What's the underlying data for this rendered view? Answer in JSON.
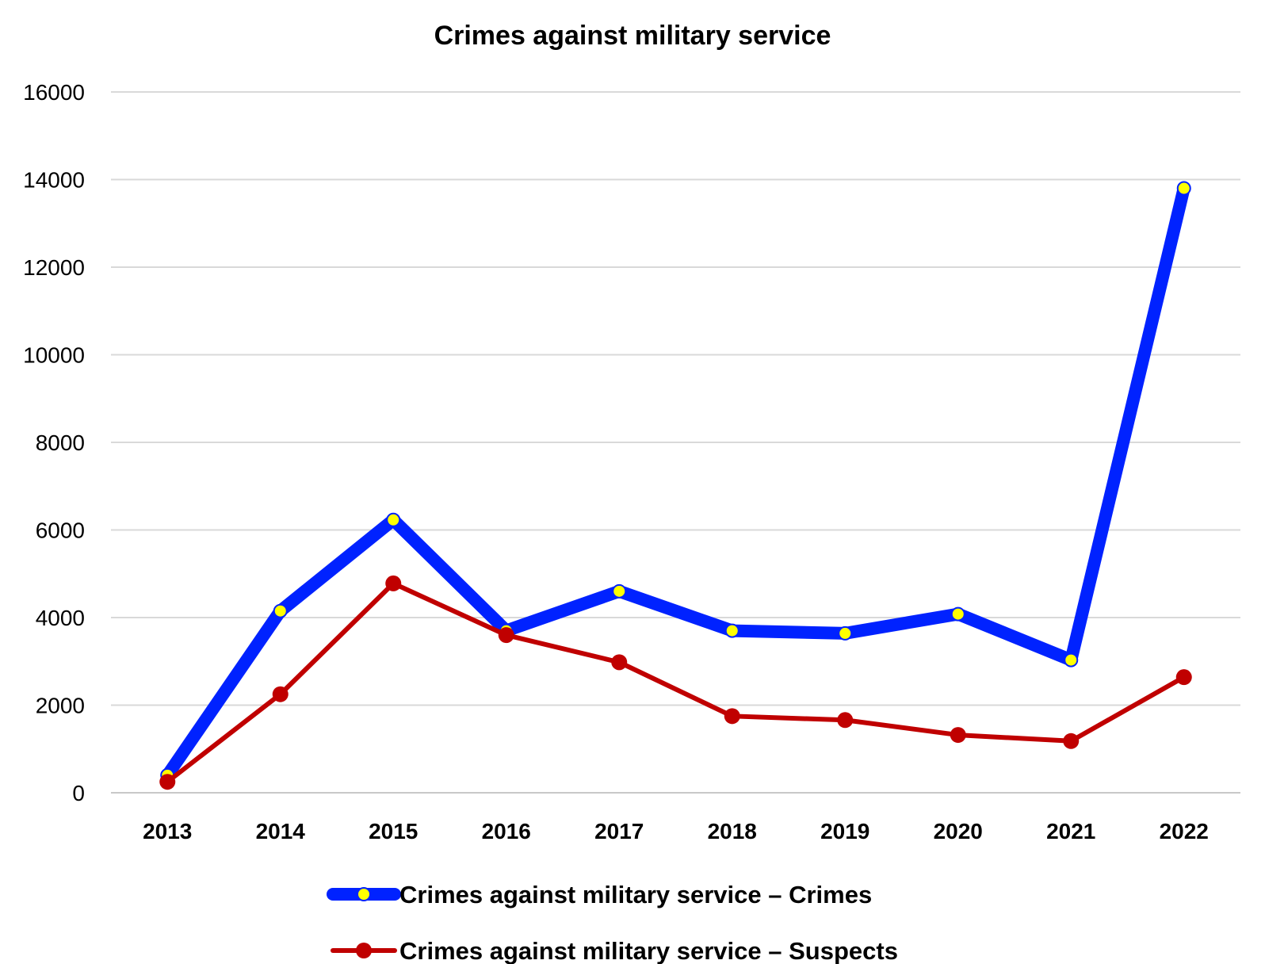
{
  "chart_data": {
    "type": "line",
    "title": "Crimes against military service",
    "xlabel": "",
    "ylabel": "",
    "categories": [
      "2013",
      "2014",
      "2015",
      "2016",
      "2017",
      "2018",
      "2019",
      "2020",
      "2021",
      "2022"
    ],
    "ylim": [
      0,
      16000
    ],
    "yticks": [
      0,
      2000,
      4000,
      6000,
      8000,
      10000,
      12000,
      14000,
      16000
    ],
    "grid": true,
    "legend_position": "bottom",
    "series": [
      {
        "name": "Crimes against military service – Crimes",
        "color": "#0022ff",
        "marker_color": "#ffff00",
        "values": [
          400,
          4150,
          6230,
          3700,
          4600,
          3700,
          3640,
          4080,
          3030,
          13800
        ]
      },
      {
        "name": "Crimes against military service – Suspects",
        "color": "#c00000",
        "marker_color": "#c00000",
        "values": [
          250,
          2250,
          4780,
          3600,
          2980,
          1750,
          1660,
          1320,
          1180,
          2640
        ]
      }
    ]
  }
}
